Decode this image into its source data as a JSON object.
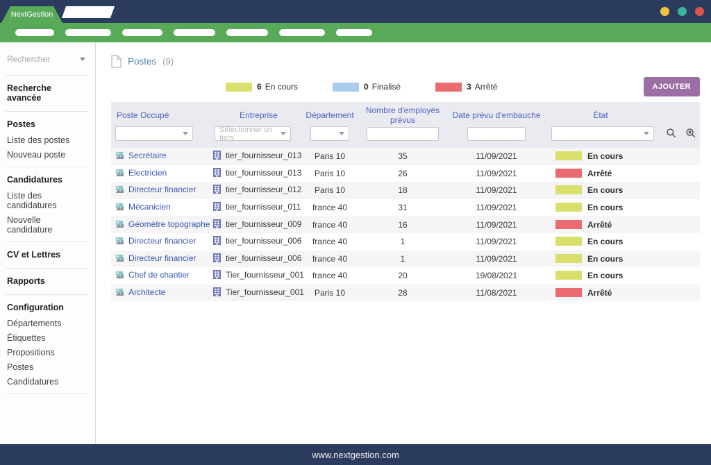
{
  "window": {
    "brand": "NextGestion",
    "footer": "www.nextgestion.com",
    "dot_colors": {
      "yellow": "#eec63e",
      "teal": "#3bb29b",
      "red": "#df5348"
    }
  },
  "sidebar": {
    "search_placeholder": "Rechercher",
    "sections": [
      {
        "title": "Recherche avancée",
        "items": []
      },
      {
        "title": "Postes",
        "items": [
          "Liste des postes",
          "Nouveau poste"
        ]
      },
      {
        "title": "Candidatures",
        "items": [
          "Liste des candidatures",
          "Nouvelle candidature"
        ]
      },
      {
        "title": "CV et Lettres",
        "items": []
      },
      {
        "title": "Rapports",
        "items": []
      },
      {
        "title": "Configuration",
        "items": [
          "Départements",
          "Étiquettes",
          "Propositions",
          "Postes",
          "Candidatures"
        ]
      }
    ]
  },
  "main": {
    "title": "Postes",
    "count": "(9)",
    "add_button": "AJOUTER",
    "legend": [
      {
        "count": "6",
        "label": "En cours",
        "color": "#d9de6d"
      },
      {
        "count": "0",
        "label": "Finalisé",
        "color": "#aacded"
      },
      {
        "count": "3",
        "label": "Arrêté",
        "color": "#ea6c70"
      }
    ],
    "status_colors": {
      "En cours": "#d9de6d",
      "Finalisé": "#aacded",
      "Arrêté": "#ea6c70"
    },
    "table": {
      "columns": [
        "Poste Occupé",
        "Entreprise",
        "Département",
        "Nombre d'employés prévus",
        "Date prévu d'embauche",
        "État"
      ],
      "filters": {
        "entreprise_placeholder": "Sélectionner un tiers"
      },
      "rows": [
        {
          "poste": "Secrétaire",
          "entreprise": "tier_fournisseur_013",
          "departement": "Paris 10",
          "nombre": "35",
          "date": "11/09/2021",
          "etat": "En cours"
        },
        {
          "poste": "Electricien",
          "entreprise": "tier_fournisseur_013",
          "departement": "Paris 10",
          "nombre": "26",
          "date": "11/09/2021",
          "etat": "Arrêté"
        },
        {
          "poste": "Directeur financier",
          "entreprise": "tier_fournisseur_012",
          "departement": "Paris 10",
          "nombre": "18",
          "date": "11/09/2021",
          "etat": "En cours"
        },
        {
          "poste": "Mécanicien",
          "entreprise": "tier_fournisseur_011",
          "departement": "france 40",
          "nombre": "31",
          "date": "11/09/2021",
          "etat": "En cours"
        },
        {
          "poste": "Géomètre topographe",
          "entreprise": "tier_fournisseur_009",
          "departement": "france 40",
          "nombre": "16",
          "date": "11/09/2021",
          "etat": "Arrêté"
        },
        {
          "poste": "Directeur financier",
          "entreprise": "tier_fournisseur_006",
          "departement": "france 40",
          "nombre": "1",
          "date": "11/09/2021",
          "etat": "En cours"
        },
        {
          "poste": "Directeur financier",
          "entreprise": "tier_fournisseur_006",
          "departement": "france 40",
          "nombre": "1",
          "date": "11/09/2021",
          "etat": "En cours"
        },
        {
          "poste": "Chef de chantier",
          "entreprise": "Tier_fournisseur_001",
          "departement": "france 40",
          "nombre": "20",
          "date": "19/08/2021",
          "etat": "En cours"
        },
        {
          "poste": "Architecte",
          "entreprise": "Tier_fournisseur_001",
          "departement": "Paris 10",
          "nombre": "28",
          "date": "11/08/2021",
          "etat": "Arrêté"
        }
      ]
    }
  }
}
